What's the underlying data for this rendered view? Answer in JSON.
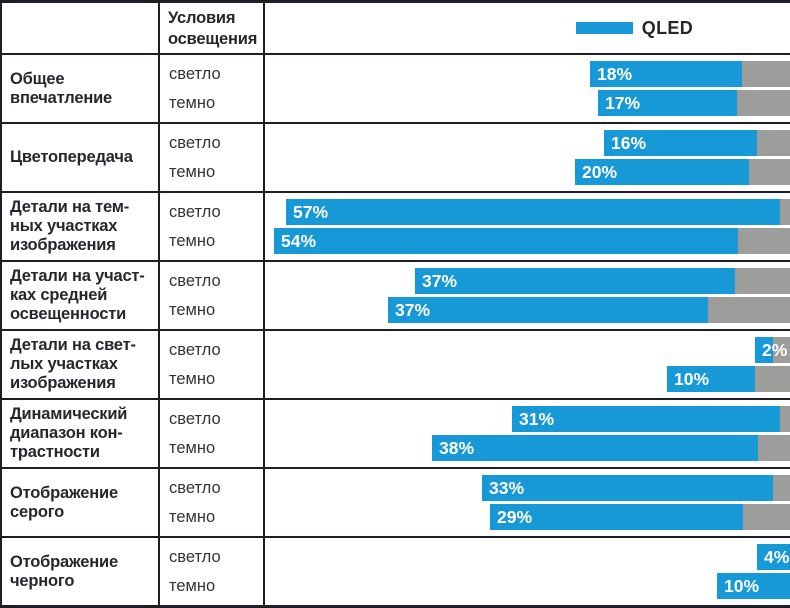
{
  "colors": {
    "blue": "#1699d6",
    "gray": "#9d9d9b",
    "border": "#1e1e28",
    "text": "#26262e"
  },
  "header": {
    "conditions_column_title": "Условия\nосвещения",
    "legend_label": "QLED"
  },
  "chart_data": {
    "type": "bar",
    "title": "",
    "legend": [
      "QLED"
    ],
    "legend_position": "top-right",
    "unit": "%",
    "orientation": "horizontal-right-aligned",
    "categories": [
      "Общее впечатление",
      "Цветопередача",
      "Детали на темных участках изображения",
      "Детали на участках средней освещенности",
      "Детали на светлых участках изображения",
      "Динамический диапазон контрастности",
      "Отображение серого",
      "Отображение черного"
    ],
    "conditions": [
      "светло",
      "темно"
    ],
    "series": [
      {
        "name": "QLED — светло",
        "values": [
          18,
          16,
          57,
          37,
          2,
          31,
          33,
          4
        ]
      },
      {
        "name": "QLED — темно",
        "values": [
          17,
          20,
          54,
          37,
          10,
          38,
          29,
          10
        ]
      }
    ]
  },
  "rows": [
    {
      "label_lines": [
        "Общее",
        "впечатление"
      ],
      "bars": [
        {
          "condition": "светло",
          "label": "18%",
          "value": 18,
          "blue_w": 152,
          "gray_w": 48
        },
        {
          "condition": "темно",
          "label": "17%",
          "value": 17,
          "blue_w": 139,
          "gray_w": 53
        }
      ]
    },
    {
      "label_lines": [
        "Цветопередача"
      ],
      "bars": [
        {
          "condition": "светло",
          "label": "16%",
          "value": 16,
          "blue_w": 153,
          "gray_w": 33
        },
        {
          "condition": "темно",
          "label": "20%",
          "value": 20,
          "blue_w": 174,
          "gray_w": 41
        }
      ]
    },
    {
      "label_lines": [
        "Детали на тем-",
        "ных участках",
        "изображения"
      ],
      "bars": [
        {
          "condition": "светло",
          "label": "57%",
          "value": 57,
          "blue_w": 494,
          "gray_w": 10
        },
        {
          "condition": "темно",
          "label": "54%",
          "value": 54,
          "blue_w": 464,
          "gray_w": 52
        }
      ]
    },
    {
      "label_lines": [
        "Детали на участ-",
        "ках средней",
        "освещенности"
      ],
      "bars": [
        {
          "condition": "светло",
          "label": "37%",
          "value": 37,
          "blue_w": 320,
          "gray_w": 55
        },
        {
          "condition": "темно",
          "label": "37%",
          "value": 37,
          "blue_w": 320,
          "gray_w": 82
        }
      ]
    },
    {
      "label_lines": [
        "Детали на свет-",
        "лых участках",
        "изображения"
      ],
      "bars": [
        {
          "condition": "светло",
          "label": "2%",
          "value": 2,
          "blue_w": 18,
          "gray_w": 17
        },
        {
          "condition": "темно",
          "label": "10%",
          "value": 10,
          "blue_w": 88,
          "gray_w": 35
        }
      ]
    },
    {
      "label_lines": [
        "Динамический",
        "диапазон кон-",
        "трастности"
      ],
      "bars": [
        {
          "condition": "светло",
          "label": "31%",
          "value": 31,
          "blue_w": 268,
          "gray_w": 10
        },
        {
          "condition": "темно",
          "label": "38%",
          "value": 38,
          "blue_w": 326,
          "gray_w": 32
        }
      ]
    },
    {
      "label_lines": [
        "Отображение",
        "серого"
      ],
      "bars": [
        {
          "condition": "светло",
          "label": "33%",
          "value": 33,
          "blue_w": 291,
          "gray_w": 17
        },
        {
          "condition": "темно",
          "label": "29%",
          "value": 29,
          "blue_w": 253,
          "gray_w": 47
        }
      ]
    },
    {
      "label_lines": [
        "Отображение",
        "черного"
      ],
      "bars": [
        {
          "condition": "светло",
          "label": "4%",
          "value": 4,
          "blue_w": 33,
          "gray_w": 0
        },
        {
          "condition": "темно",
          "label": "10%",
          "value": 10,
          "blue_w": 73,
          "gray_w": 0
        }
      ]
    }
  ]
}
